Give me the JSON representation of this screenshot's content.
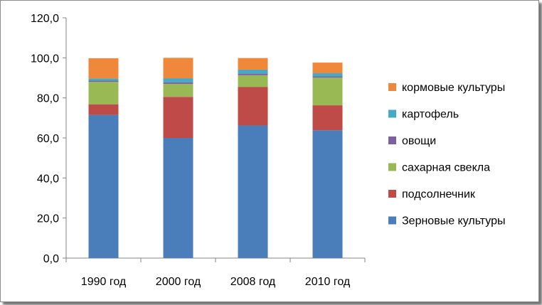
{
  "chart_data": {
    "type": "bar",
    "stacked": true,
    "categories": [
      "1990 год",
      "2000 год",
      "2008 год",
      "2010 год"
    ],
    "series": [
      {
        "name": "Зерновые культуры",
        "color": "#4a7ebb",
        "values": [
          71.5,
          60.0,
          66.2,
          63.8
        ]
      },
      {
        "name": "подсолнечник",
        "color": "#be4b48",
        "values": [
          5.3,
          20.5,
          19.3,
          12.5
        ]
      },
      {
        "name": "сахарная свекла",
        "color": "#98b954",
        "values": [
          11.2,
          6.5,
          5.8,
          13.8
        ]
      },
      {
        "name": "овощи",
        "color": "#7d60a0",
        "values": [
          0.6,
          0.8,
          0.8,
          0.6
        ]
      },
      {
        "name": "картофель",
        "color": "#46aac5",
        "values": [
          1.1,
          2.0,
          2.0,
          1.6
        ]
      },
      {
        "name": "кормовые культуры",
        "color": "#f0883c",
        "values": [
          10.1,
          10.2,
          5.8,
          5.3
        ]
      }
    ],
    "yticks": [
      "0,0",
      "20,0",
      "40,0",
      "60,0",
      "80,0",
      "100,0",
      "120,0"
    ],
    "ylim": [
      0,
      120
    ],
    "grid": false,
    "legend_position": "right"
  }
}
